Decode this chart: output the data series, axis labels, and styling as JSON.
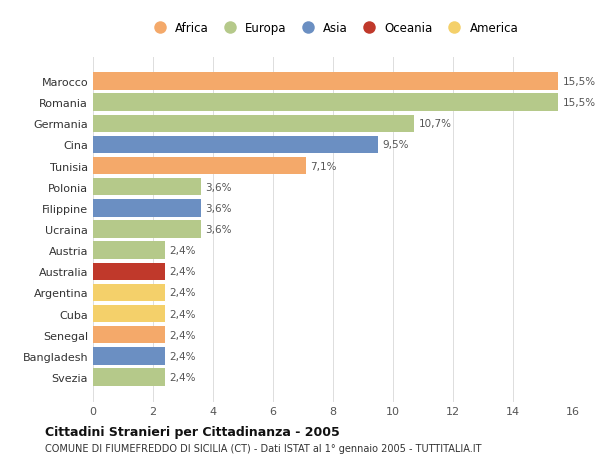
{
  "categories": [
    "Marocco",
    "Romania",
    "Germania",
    "Cina",
    "Tunisia",
    "Polonia",
    "Filippine",
    "Ucraina",
    "Austria",
    "Australia",
    "Argentina",
    "Cuba",
    "Senegal",
    "Bangladesh",
    "Svezia"
  ],
  "values": [
    15.5,
    15.5,
    10.7,
    9.5,
    7.1,
    3.6,
    3.6,
    3.6,
    2.4,
    2.4,
    2.4,
    2.4,
    2.4,
    2.4,
    2.4
  ],
  "labels": [
    "15,5%",
    "15,5%",
    "10,7%",
    "9,5%",
    "7,1%",
    "3,6%",
    "3,6%",
    "3,6%",
    "2,4%",
    "2,4%",
    "2,4%",
    "2,4%",
    "2,4%",
    "2,4%",
    "2,4%"
  ],
  "bar_colors": [
    "#f4a96a",
    "#b5c98a",
    "#b5c98a",
    "#6b8fc2",
    "#f4a96a",
    "#b5c98a",
    "#6b8fc2",
    "#b5c98a",
    "#b5c98a",
    "#c0392b",
    "#f4d06a",
    "#f4d06a",
    "#f4a96a",
    "#6b8fc2",
    "#b5c98a"
  ],
  "legend_labels": [
    "Africa",
    "Europa",
    "Asia",
    "Oceania",
    "America"
  ],
  "legend_colors": [
    "#f4a96a",
    "#b5c98a",
    "#6b8fc2",
    "#c0392b",
    "#f4d06a"
  ],
  "title": "Cittadini Stranieri per Cittadinanza - 2005",
  "subtitle": "COMUNE DI FIUMEFREDDO DI SICILIA (CT) - Dati ISTAT al 1° gennaio 2005 - TUTTITALIA.IT",
  "xlim": [
    0,
    16
  ],
  "xticks": [
    0,
    2,
    4,
    6,
    8,
    10,
    12,
    14,
    16
  ],
  "background_color": "#ffffff",
  "grid_color": "#dddddd",
  "bar_height": 0.82
}
